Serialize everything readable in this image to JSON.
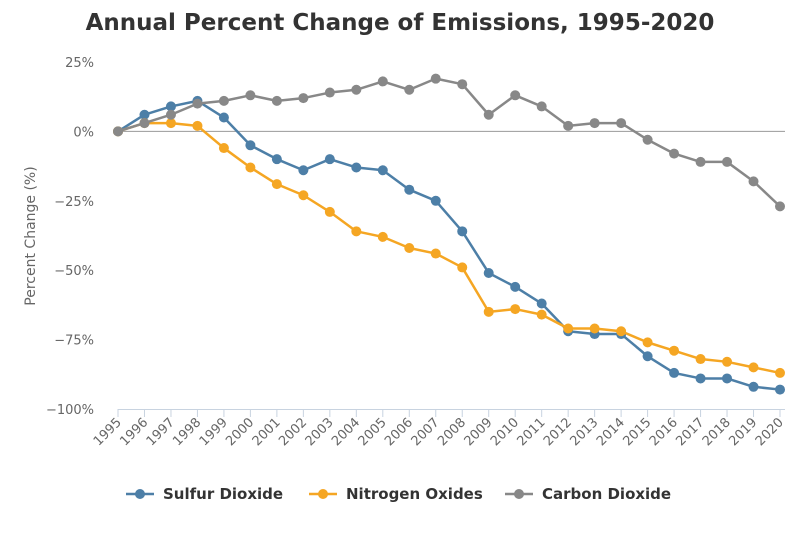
{
  "chart_data": {
    "type": "line",
    "title": "Annual Percent Change of Emissions, 1995-2020",
    "xlabel": "",
    "ylabel": "Percent Change (%)",
    "ylim": [
      -100,
      25
    ],
    "yticks": [
      {
        "value": 25,
        "label": "25%"
      },
      {
        "value": 0,
        "label": "0%"
      },
      {
        "value": -25,
        "label": "−25%"
      },
      {
        "value": -50,
        "label": "−50%"
      },
      {
        "value": -75,
        "label": "−75%"
      },
      {
        "value": -100,
        "label": "−100%"
      }
    ],
    "categories": [
      "1995",
      "1996",
      "1997",
      "1998",
      "1999",
      "2000",
      "2001",
      "2002",
      "2003",
      "2004",
      "2005",
      "2006",
      "2007",
      "2008",
      "2009",
      "2010",
      "2011",
      "2012",
      "2013",
      "2014",
      "2015",
      "2016",
      "2017",
      "2018",
      "2019",
      "2020"
    ],
    "grid": false,
    "legend": "bottom",
    "series": [
      {
        "name": "Sulfur Dioxide",
        "color": "#4d7fa7",
        "values": [
          0,
          6,
          9,
          11,
          5,
          -5,
          -10,
          -14,
          -10,
          -13,
          -14,
          -21,
          -25,
          -36,
          -51,
          -56,
          -62,
          -72,
          -73,
          -73,
          -81,
          -87,
          -89,
          -89,
          -92,
          -93
        ]
      },
      {
        "name": "Nitrogen Oxides",
        "color": "#f5a623",
        "values": [
          0,
          3,
          3,
          2,
          -6,
          -13,
          -19,
          -23,
          -29,
          -36,
          -38,
          -42,
          -44,
          -49,
          -65,
          -64,
          -66,
          -71,
          -71,
          -72,
          -76,
          -79,
          -82,
          -83,
          -85,
          -87
        ]
      },
      {
        "name": "Carbon Dioxide",
        "color": "#888888",
        "values": [
          0,
          3,
          6,
          10,
          11,
          13,
          11,
          12,
          14,
          15,
          18,
          15,
          19,
          17,
          6,
          13,
          9,
          2,
          3,
          3,
          -3,
          -8,
          -11,
          -11,
          -18,
          -27
        ]
      }
    ]
  }
}
